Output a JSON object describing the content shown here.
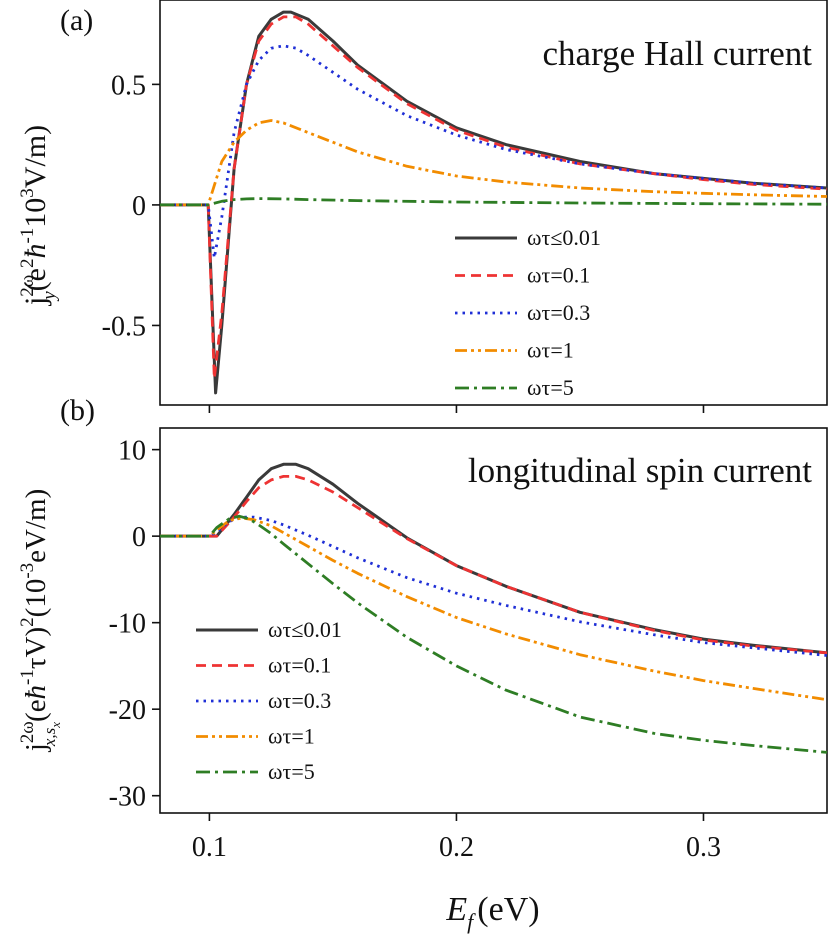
{
  "figure": {
    "xlabel_main": "E",
    "xlabel_sub": "f",
    "xlabel_unit": "(eV)",
    "x_ticks": [
      0.1,
      0.2,
      0.3
    ],
    "x_tick_labels": [
      "0.1",
      "0.2",
      "0.3"
    ]
  },
  "chart_data": [
    {
      "type": "line",
      "panel_label": "(a)",
      "title": "charge Hall current",
      "ylabel": "j_y^{2ω}(e^2ħ^-1 10^3 V/m)",
      "ylabel_parts": {
        "main": "j",
        "sup": "2ω",
        "sub": "y",
        "rest1": "(e",
        "sup2": "2",
        "hbar": "ħ",
        "sup3": "-1",
        "rest2": "10",
        "sup4": "3",
        "rest3": "V/m)"
      },
      "xlim": [
        0.08,
        0.35
      ],
      "ylim": [
        -0.83,
        0.85
      ],
      "y_ticks": [
        -0.5,
        0,
        0.5
      ],
      "y_tick_labels": [
        "-0.5",
        "0",
        "0.5"
      ],
      "legend_position": "bottom-right",
      "series": [
        {
          "name": "ωτ≤0.01",
          "color": "#3a3a3a",
          "dash": "solid",
          "x": [
            0.08,
            0.098,
            0.0995,
            0.1025,
            0.105,
            0.11,
            0.115,
            0.12,
            0.125,
            0.13,
            0.133,
            0.14,
            0.15,
            0.16,
            0.18,
            0.2,
            0.22,
            0.25,
            0.28,
            0.3,
            0.32,
            0.35
          ],
          "y": [
            0,
            0,
            0,
            -0.78,
            -0.5,
            0.15,
            0.5,
            0.7,
            0.77,
            0.8,
            0.8,
            0.77,
            0.68,
            0.58,
            0.43,
            0.32,
            0.25,
            0.18,
            0.13,
            0.11,
            0.09,
            0.07
          ]
        },
        {
          "name": "ωτ=0.1",
          "color": "#ee3333",
          "dash": "dashed",
          "x": [
            0.08,
            0.098,
            0.0995,
            0.102,
            0.105,
            0.11,
            0.115,
            0.12,
            0.125,
            0.13,
            0.135,
            0.14,
            0.15,
            0.16,
            0.18,
            0.2,
            0.22,
            0.25,
            0.28,
            0.3,
            0.32,
            0.35
          ],
          "y": [
            0,
            0,
            0,
            -0.72,
            -0.45,
            0.15,
            0.5,
            0.68,
            0.75,
            0.78,
            0.78,
            0.75,
            0.66,
            0.57,
            0.42,
            0.31,
            0.24,
            0.17,
            0.13,
            0.105,
            0.085,
            0.065
          ]
        },
        {
          "name": "ωτ=0.3",
          "color": "#1f2fd6",
          "dash": "dotted",
          "x": [
            0.08,
            0.098,
            0.0995,
            0.102,
            0.105,
            0.11,
            0.115,
            0.12,
            0.125,
            0.13,
            0.135,
            0.14,
            0.15,
            0.16,
            0.18,
            0.2,
            0.22,
            0.25,
            0.28,
            0.3,
            0.32,
            0.35
          ],
          "y": [
            0,
            0,
            0,
            -0.22,
            -0.05,
            0.3,
            0.5,
            0.6,
            0.65,
            0.66,
            0.65,
            0.62,
            0.55,
            0.48,
            0.37,
            0.29,
            0.23,
            0.17,
            0.13,
            0.11,
            0.09,
            0.07
          ]
        },
        {
          "name": "ωτ=1",
          "color": "#f28c00",
          "dash": "dashdotdot",
          "x": [
            0.08,
            0.098,
            0.0995,
            0.105,
            0.11,
            0.115,
            0.12,
            0.125,
            0.13,
            0.14,
            0.15,
            0.16,
            0.18,
            0.2,
            0.22,
            0.25,
            0.28,
            0.3,
            0.32,
            0.35
          ],
          "y": [
            0,
            0,
            0,
            0.18,
            0.26,
            0.31,
            0.34,
            0.35,
            0.34,
            0.3,
            0.26,
            0.22,
            0.16,
            0.12,
            0.095,
            0.07,
            0.055,
            0.048,
            0.042,
            0.035
          ]
        },
        {
          "name": "ωτ=5",
          "color": "#2e7d24",
          "dash": "dashdot",
          "x": [
            0.08,
            0.098,
            0.0995,
            0.105,
            0.11,
            0.115,
            0.12,
            0.13,
            0.14,
            0.16,
            0.2,
            0.25,
            0.3,
            0.35
          ],
          "y": [
            0,
            0,
            0,
            0.015,
            0.022,
            0.025,
            0.026,
            0.025,
            0.022,
            0.018,
            0.012,
            0.008,
            0.005,
            0.003
          ]
        }
      ]
    },
    {
      "type": "line",
      "panel_label": "(b)",
      "title": "longitudinal spin current",
      "ylabel": "j_{x,s_x}^{2ω}(eħ^-1 τV)^2(10^-3 eV/m)",
      "ylabel_parts": {
        "main": "j",
        "sup": "2ω",
        "sub": "x,s",
        "subsub": "x",
        "rest1": "(e",
        "hbar": "ħ",
        "sup3": "-1",
        "rest2": "τV)",
        "sup2": "2",
        "rest3": "(10",
        "sup4": "-3",
        "rest4": "eV/m)"
      },
      "xlim": [
        0.08,
        0.35
      ],
      "ylim": [
        -32,
        12.5
      ],
      "y_ticks": [
        -30,
        -20,
        -10,
        0,
        10
      ],
      "y_tick_labels": [
        "-30",
        "-20",
        "-10",
        "0",
        "10"
      ],
      "legend_position": "bottom-left",
      "series": [
        {
          "name": "ωτ≤0.01",
          "color": "#3a3a3a",
          "dash": "solid",
          "x": [
            0.08,
            0.098,
            0.1,
            0.103,
            0.11,
            0.115,
            0.12,
            0.125,
            0.13,
            0.135,
            0.14,
            0.15,
            0.16,
            0.17,
            0.18,
            0.2,
            0.22,
            0.25,
            0.28,
            0.3,
            0.32,
            0.35
          ],
          "y": [
            0,
            0,
            0,
            0,
            2.5,
            4.5,
            6.5,
            7.8,
            8.3,
            8.3,
            7.8,
            6.0,
            3.8,
            1.8,
            -0.2,
            -3.4,
            -5.8,
            -8.8,
            -10.8,
            -11.9,
            -12.6,
            -13.5
          ]
        },
        {
          "name": "ωτ=0.1",
          "color": "#ee3333",
          "dash": "dashed",
          "x": [
            0.08,
            0.098,
            0.1,
            0.103,
            0.11,
            0.115,
            0.12,
            0.125,
            0.13,
            0.135,
            0.14,
            0.15,
            0.16,
            0.17,
            0.18,
            0.2,
            0.22,
            0.25,
            0.28,
            0.3,
            0.32,
            0.35
          ],
          "y": [
            0,
            0,
            0,
            0,
            2.2,
            4.0,
            5.6,
            6.5,
            6.9,
            6.9,
            6.5,
            5.1,
            3.3,
            1.5,
            -0.3,
            -3.4,
            -5.8,
            -8.8,
            -10.9,
            -12.0,
            -12.7,
            -13.5
          ]
        },
        {
          "name": "ωτ=0.3",
          "color": "#1f2fd6",
          "dash": "dotted",
          "x": [
            0.08,
            0.098,
            0.1,
            0.103,
            0.108,
            0.113,
            0.118,
            0.125,
            0.13,
            0.14,
            0.15,
            0.16,
            0.18,
            0.2,
            0.22,
            0.25,
            0.28,
            0.3,
            0.32,
            0.35
          ],
          "y": [
            0,
            0,
            0,
            0.5,
            1.7,
            2.2,
            2.2,
            1.8,
            1.3,
            0.1,
            -1.2,
            -2.5,
            -4.8,
            -6.6,
            -8.0,
            -9.9,
            -11.4,
            -12.3,
            -12.9,
            -13.8
          ]
        },
        {
          "name": "ωτ=1",
          "color": "#f28c00",
          "dash": "dashdotdot",
          "x": [
            0.08,
            0.098,
            0.1,
            0.103,
            0.108,
            0.113,
            0.118,
            0.125,
            0.13,
            0.14,
            0.15,
            0.16,
            0.18,
            0.2,
            0.22,
            0.25,
            0.28,
            0.3,
            0.32,
            0.35
          ],
          "y": [
            0,
            0,
            0,
            0.7,
            1.8,
            2.1,
            1.9,
            1.2,
            0.4,
            -1.2,
            -2.8,
            -4.3,
            -7.0,
            -9.4,
            -11.3,
            -13.7,
            -15.6,
            -16.7,
            -17.6,
            -18.9
          ]
        },
        {
          "name": "ωτ=5",
          "color": "#2e7d24",
          "dash": "dashdot",
          "x": [
            0.08,
            0.098,
            0.1,
            0.103,
            0.108,
            0.112,
            0.116,
            0.12,
            0.125,
            0.13,
            0.14,
            0.15,
            0.16,
            0.18,
            0.2,
            0.22,
            0.25,
            0.28,
            0.3,
            0.32,
            0.35
          ],
          "y": [
            0,
            0,
            0,
            1.0,
            2.0,
            2.3,
            2.0,
            1.3,
            0.3,
            -0.9,
            -3.2,
            -5.5,
            -7.7,
            -11.7,
            -15.0,
            -17.8,
            -20.9,
            -22.8,
            -23.6,
            -24.2,
            -25.0
          ]
        }
      ]
    }
  ]
}
